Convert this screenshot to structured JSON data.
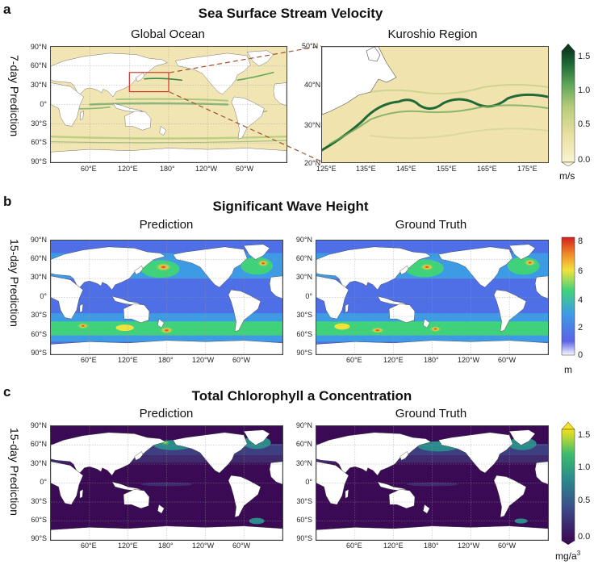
{
  "panel_a": {
    "letter": "a",
    "title": "Sea Surface Stream Velocity",
    "row_label": "7-day Prediction",
    "left_map": {
      "title": "Global Ocean",
      "lat_ticks": [
        "90°N",
        "60°N",
        "30°N",
        "0°",
        "30°S",
        "60°S",
        "90°S"
      ],
      "lon_ticks": [
        "60°E",
        "120°E",
        "180°",
        "120°W",
        "60°W"
      ]
    },
    "right_map": {
      "title": "Kuroshio Region",
      "lat_ticks": [
        "50°N",
        "40°N",
        "30°N",
        "20°N"
      ],
      "lon_ticks": [
        "125°E",
        "135°E",
        "145°E",
        "155°E",
        "165°E",
        "175°E"
      ]
    },
    "colorbar": {
      "ticks": [
        "1.5",
        "1.0",
        "0.5",
        "0.0"
      ],
      "unit": "m/s",
      "colors": [
        "#fbf4d2",
        "#e9dfa0",
        "#b5cc7a",
        "#5fa55a",
        "#1f6a36",
        "#0c3d1f"
      ]
    }
  },
  "panel_b": {
    "letter": "b",
    "title": "Significant Wave Height",
    "row_label": "15-day Prediction",
    "left_map": {
      "title": "Prediction"
    },
    "right_map": {
      "title": "Ground Truth"
    },
    "lat_ticks": [
      "90°N",
      "60°N",
      "30°N",
      "0°",
      "30°S",
      "60°S",
      "90°S"
    ],
    "lon_ticks": [
      "60°E",
      "120°E",
      "180°",
      "120°W",
      "60°W"
    ],
    "colorbar": {
      "ticks": [
        "8",
        "6",
        "4",
        "2",
        "0"
      ],
      "unit": "m",
      "colors": [
        "#f8f8ff",
        "#5a62e6",
        "#3d9be6",
        "#40d27a",
        "#f2e23c",
        "#f08a26",
        "#d41e1e"
      ]
    }
  },
  "panel_c": {
    "letter": "c",
    "title": "Total Chlorophyll a Concentration",
    "row_label": "15-day Prediction",
    "left_map": {
      "title": "Prediction"
    },
    "right_map": {
      "title": "Ground Truth"
    },
    "lat_ticks": [
      "90°N",
      "60°N",
      "30°N",
      "0°",
      "30°S",
      "60°S",
      "90°S"
    ],
    "lon_ticks": [
      "60°E",
      "120°E",
      "180°",
      "120°W",
      "60°W"
    ],
    "colorbar": {
      "ticks": [
        "1.5",
        "1.0",
        "0.5",
        "0.0"
      ],
      "unit": "mg/a",
      "unit_sup": "3",
      "colors": [
        "#3a0a55",
        "#3d4d8a",
        "#2a8a8c",
        "#3dbd6c",
        "#f4e21c"
      ]
    }
  }
}
